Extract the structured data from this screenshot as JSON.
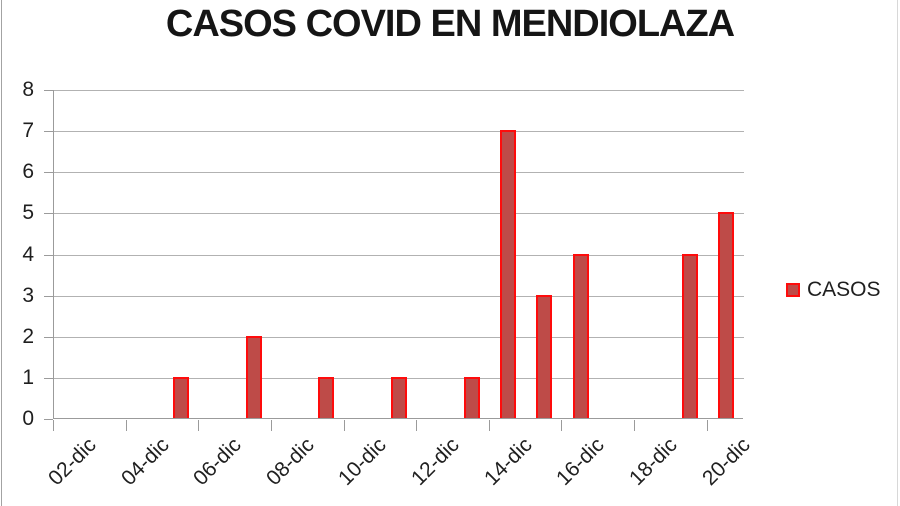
{
  "title": "CASOS COVID EN MENDIOLAZA",
  "colors": {
    "bar_fill": "#be4b48",
    "bar_border": "#fe0c0c",
    "gridline": "#b2b2b2",
    "axis": "#9b9b9b",
    "text": "#1f1f1f",
    "background": "#ffffff"
  },
  "chart_data": {
    "type": "bar",
    "title": "CASOS COVID EN MENDIOLAZA",
    "categories": [
      "02-dic",
      "03-dic",
      "04-dic",
      "05-dic",
      "06-dic",
      "07-dic",
      "08-dic",
      "09-dic",
      "10-dic",
      "11-dic",
      "12-dic",
      "13-dic",
      "14-dic",
      "15-dic",
      "16-dic",
      "17-dic",
      "18-dic",
      "19-dic",
      "20-dic"
    ],
    "values": [
      0,
      0,
      0,
      1,
      0,
      2,
      0,
      1,
      0,
      1,
      0,
      1,
      7,
      3,
      4,
      0,
      0,
      4,
      5
    ],
    "xlabel": "",
    "ylabel": "",
    "ylim": [
      0,
      8
    ],
    "ytick_interval": 1,
    "x_label_every": 2,
    "x_tick_every": 2,
    "grid": true,
    "legend": [
      "CASOS"
    ],
    "legend_position": "right"
  }
}
